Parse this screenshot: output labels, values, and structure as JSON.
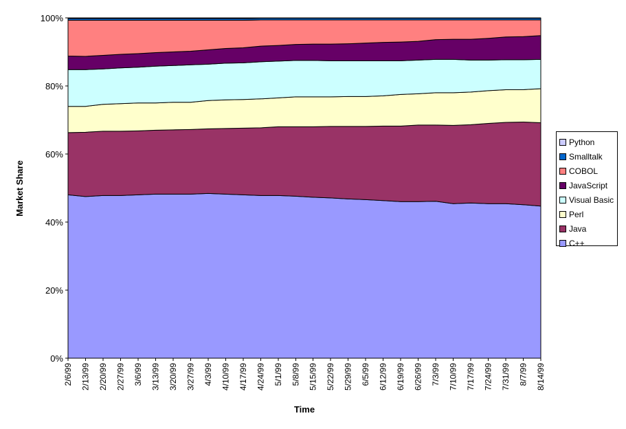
{
  "chart_data": {
    "type": "area",
    "stacked": "percent",
    "title": "",
    "xlabel": "Time",
    "ylabel": "Market Share",
    "ylim": [
      0,
      100
    ],
    "y_ticks": [
      "0%",
      "20%",
      "40%",
      "60%",
      "80%",
      "100%"
    ],
    "legend_position": "right",
    "x": [
      "2/6/99",
      "2/13/99",
      "2/20/99",
      "2/27/99",
      "3/6/99",
      "3/13/99",
      "3/20/99",
      "3/27/99",
      "4/3/99",
      "4/10/99",
      "4/17/99",
      "4/24/99",
      "5/1/99",
      "5/8/99",
      "5/15/99",
      "5/22/99",
      "5/29/99",
      "6/5/99",
      "6/12/99",
      "6/19/99",
      "6/26/99",
      "7/3/99",
      "7/10/99",
      "7/17/99",
      "7/24/99",
      "7/31/99",
      "8/7/99",
      "8/14/99"
    ],
    "series": [
      {
        "name": "C++",
        "color": "#9999ff",
        "values": [
          48,
          47.5,
          47.8,
          47.8,
          48,
          48.2,
          48.2,
          48.2,
          48.4,
          48.2,
          48,
          47.8,
          47.8,
          47.6,
          47.3,
          47.1,
          46.8,
          46.6,
          46.3,
          46,
          46,
          46.1,
          45.4,
          45.6,
          45.4,
          45.4,
          45.1,
          44.7
        ]
      },
      {
        "name": "Java",
        "color": "#993366",
        "values": [
          18.3,
          18.9,
          18.9,
          18.9,
          18.8,
          18.8,
          18.9,
          19,
          19,
          19.3,
          19.6,
          19.9,
          20.2,
          20.4,
          20.7,
          21,
          21.3,
          21.5,
          21.9,
          22.2,
          22.5,
          22.4,
          23,
          23,
          23.6,
          23.9,
          24.3,
          24.5
        ]
      },
      {
        "name": "Perl",
        "color": "#ffffcc",
        "values": [
          7.7,
          7.6,
          7.9,
          8.1,
          8.2,
          8,
          8.1,
          8,
          8.3,
          8.4,
          8.4,
          8.5,
          8.5,
          8.8,
          8.8,
          8.7,
          8.8,
          8.8,
          8.9,
          9.3,
          9.2,
          9.5,
          9.6,
          9.6,
          9.6,
          9.6,
          9.5,
          10
        ]
      },
      {
        "name": "Visual Basic",
        "color": "#ccffff",
        "values": [
          10.8,
          10.8,
          10.4,
          10.5,
          10.5,
          10.8,
          10.8,
          11,
          10.7,
          10.8,
          10.8,
          10.9,
          10.8,
          10.7,
          10.7,
          10.6,
          10.5,
          10.5,
          10.3,
          9.9,
          9.9,
          9.8,
          9.8,
          9.4,
          9,
          8.8,
          8.8,
          8.6
        ]
      },
      {
        "name": "JavaScript",
        "color": "#660066",
        "values": [
          4,
          3.9,
          4,
          4,
          4,
          4,
          4,
          4,
          4.2,
          4.3,
          4.4,
          4.6,
          4.6,
          4.7,
          4.8,
          4.9,
          5,
          5.2,
          5.4,
          5.5,
          5.5,
          5.8,
          5.9,
          6.1,
          6.4,
          6.7,
          6.8,
          7
        ]
      },
      {
        "name": "COBOL",
        "color": "#ff8080",
        "values": [
          10.5,
          10.6,
          10.3,
          10,
          9.8,
          9.5,
          9.3,
          9.1,
          8.7,
          8.3,
          8.1,
          7.7,
          7.5,
          7.2,
          7.1,
          7.1,
          7,
          6.8,
          6.6,
          6.5,
          6.3,
          5.8,
          5.7,
          5.7,
          5.4,
          5,
          4.9,
          4.6
        ]
      },
      {
        "name": "Smalltalk",
        "color": "#0066cc",
        "values": [
          0.5,
          0.5,
          0.5,
          0.5,
          0.5,
          0.5,
          0.5,
          0.5,
          0.5,
          0.5,
          0.5,
          0.5,
          0.5,
          0.5,
          0.5,
          0.5,
          0.5,
          0.5,
          0.5,
          0.5,
          0.5,
          0.5,
          0.5,
          0.5,
          0.5,
          0.5,
          0.5,
          0.5
        ]
      },
      {
        "name": "Python",
        "color": "#ccccff",
        "values": [
          0.2,
          0.2,
          0.2,
          0.2,
          0.2,
          0.2,
          0.2,
          0.2,
          0.2,
          0.2,
          0.2,
          0.1,
          0.1,
          0.1,
          0.1,
          0.1,
          0.1,
          0.1,
          0.1,
          0.1,
          0.1,
          0.1,
          0.1,
          0.1,
          0.1,
          0.1,
          0.1,
          0.1
        ]
      }
    ]
  }
}
